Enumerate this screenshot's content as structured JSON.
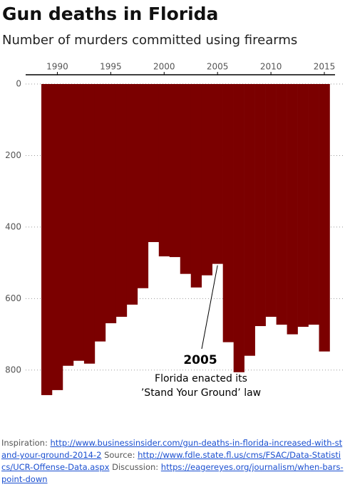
{
  "chart_data": {
    "type": "bar",
    "title": "Gun deaths in Florida",
    "subtitle": "Number of murders committed using firearms",
    "categories": [
      1989,
      1990,
      1991,
      1992,
      1993,
      1994,
      1995,
      1996,
      1997,
      1998,
      1999,
      2000,
      2001,
      2002,
      2003,
      2004,
      2005,
      2006,
      2007,
      2008,
      2009,
      2010,
      2011,
      2012,
      2013,
      2014,
      2015
    ],
    "values": [
      870,
      856,
      788,
      774,
      782,
      720,
      669,
      651,
      617,
      571,
      442,
      482,
      484,
      531,
      569,
      535,
      503,
      722,
      806,
      760,
      677,
      651,
      673,
      700,
      679,
      673,
      748
    ],
    "color": "#7b0000",
    "xlim": [
      1987.3,
      2016.0
    ],
    "xticks": [
      1990,
      1995,
      2000,
      2005,
      2010,
      2015
    ],
    "ylim": [
      0,
      900
    ],
    "yticks": [
      0,
      200,
      400,
      600,
      800
    ],
    "y_inverted": true,
    "grid": true,
    "annotation": {
      "year": 2005,
      "title": "2005",
      "lines": [
        "Florida enacted its",
        "’Stand Your Ground’ law"
      ]
    }
  },
  "footer": {
    "inspiration_label": "Inspiration:",
    "inspiration_url": "http://www.businessinsider.com/gun-deaths-in-florida-increased-with-stand-your-ground-2014-2",
    "source_label": "Source:",
    "source_url": "http://www.fdle.state.fl.us/cms/FSAC/Data-Statistics/UCR-Offense-Data.aspx",
    "discussion_label": "Discussion:",
    "discussion_url": "https://eagereyes.org/journalism/when-bars-point-down"
  }
}
